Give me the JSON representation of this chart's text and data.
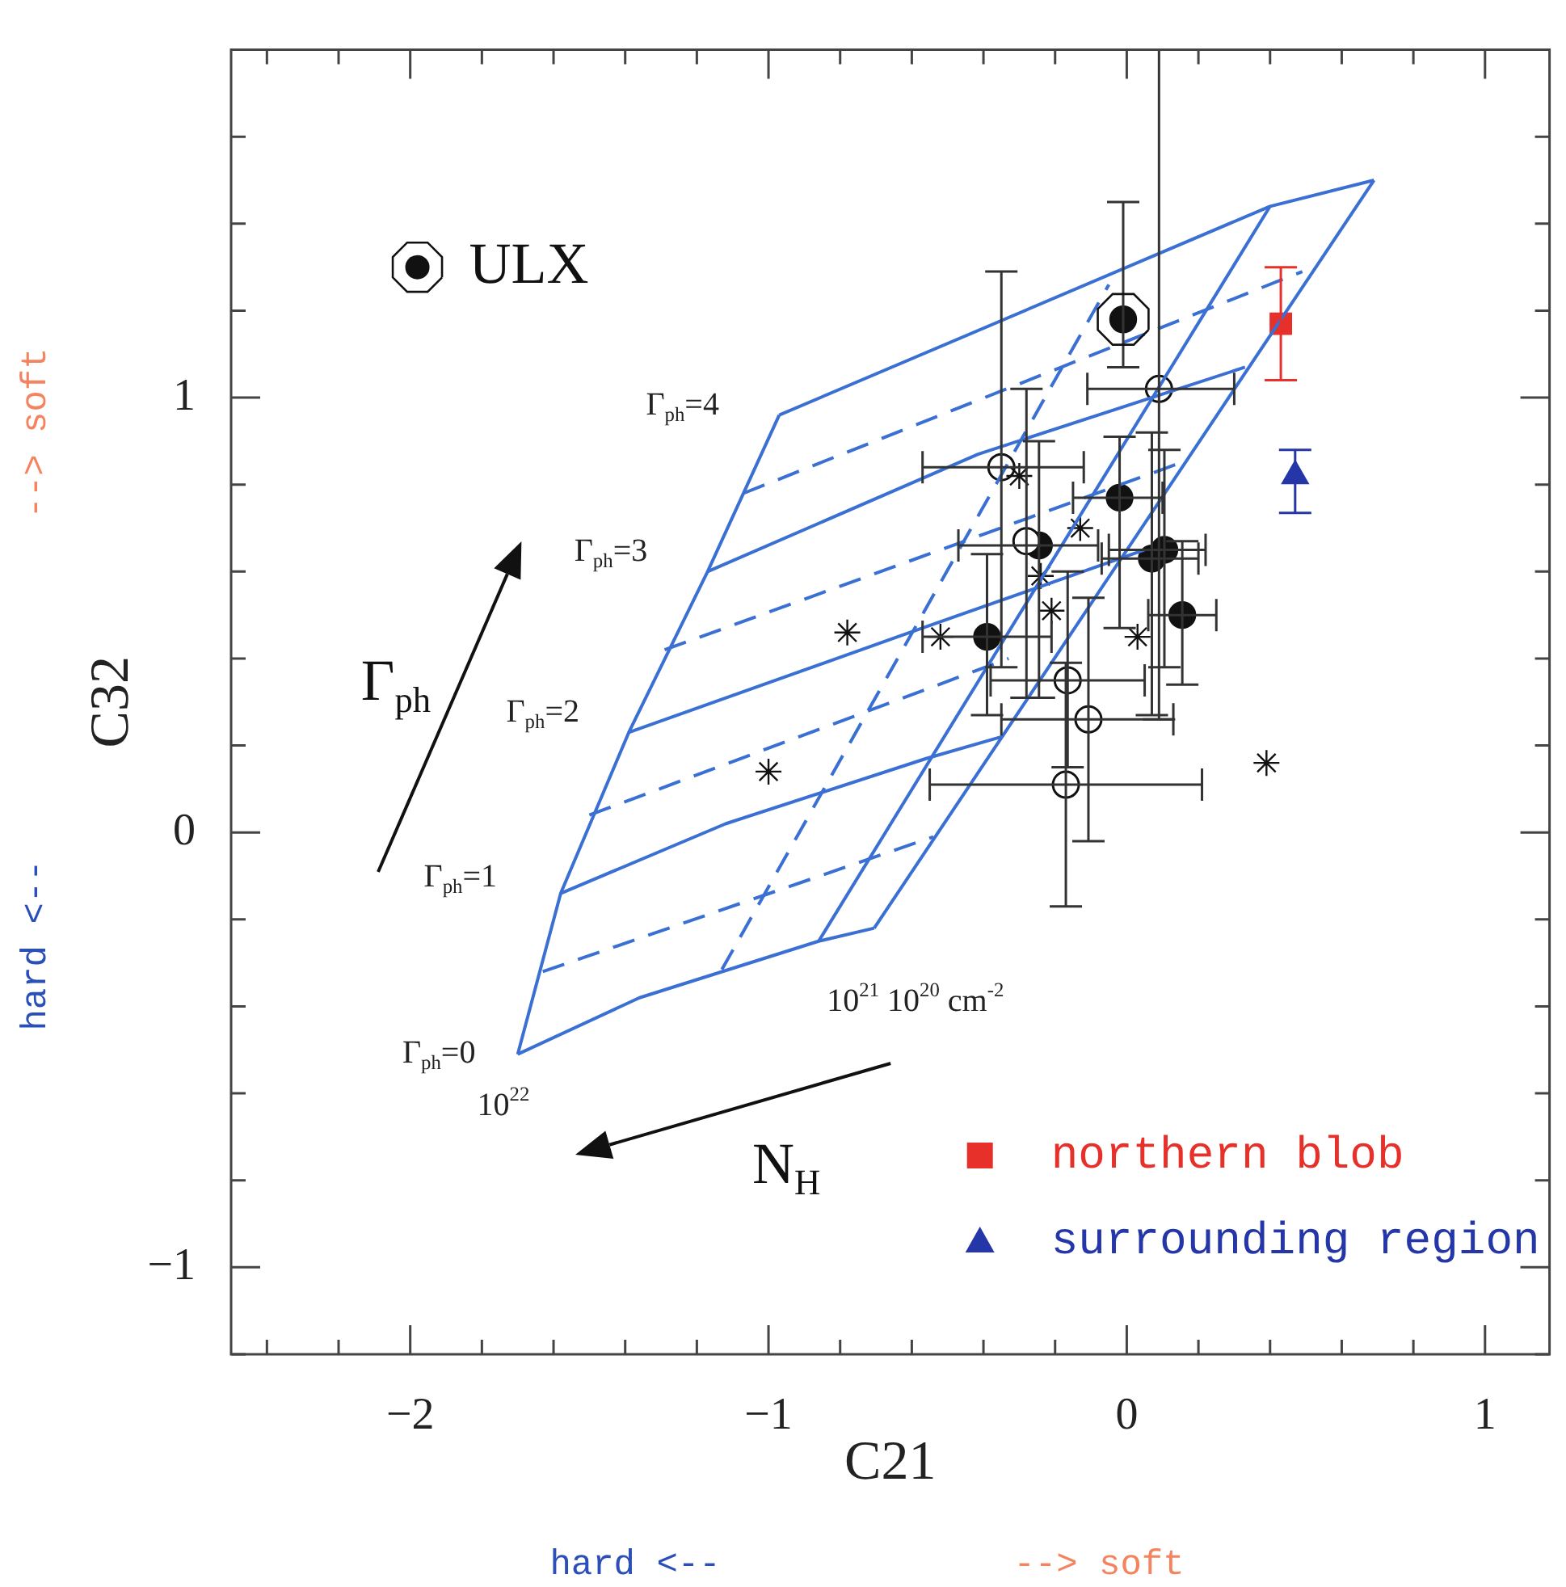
{
  "chart_data": {
    "type": "scatter",
    "xlabel": "C21",
    "ylabel": "C32",
    "xlim": [
      -2.5,
      1.18
    ],
    "ylim": [
      -1.2,
      1.8
    ],
    "xticks": [
      {
        "value": -2.4,
        "label": null
      },
      {
        "value": -2.2,
        "label": null
      },
      {
        "value": -2,
        "label": "−2"
      },
      {
        "value": -1.8,
        "label": null
      },
      {
        "value": -1.6,
        "label": null
      },
      {
        "value": -1.4,
        "label": null
      },
      {
        "value": -1.2,
        "label": null
      },
      {
        "value": -1,
        "label": "−1"
      },
      {
        "value": -0.8,
        "label": null
      },
      {
        "value": -0.6,
        "label": null
      },
      {
        "value": -0.4,
        "label": null
      },
      {
        "value": -0.2,
        "label": null
      },
      0,
      {
        "value": 0.2,
        "label": null
      },
      {
        "value": 0.4,
        "label": null
      },
      {
        "value": 0.6,
        "label": null
      },
      {
        "value": 0.8,
        "label": null
      },
      1
    ],
    "yticks": [
      {
        "value": -1.2,
        "label": null
      },
      {
        "value": -1,
        "label": "−1"
      },
      {
        "value": -0.8,
        "label": null
      },
      {
        "value": -0.6,
        "label": null
      },
      {
        "value": -0.4,
        "label": null
      },
      {
        "value": -0.2,
        "label": null
      },
      0,
      {
        "value": 0.2,
        "label": null
      },
      {
        "value": 0.4,
        "label": null
      },
      {
        "value": 0.6,
        "label": null
      },
      {
        "value": 0.8,
        "label": null
      },
      1,
      {
        "value": 1.2,
        "label": null
      },
      {
        "value": 1.4,
        "label": null
      },
      {
        "value": 1.6,
        "label": null
      },
      {
        "value": 1.8,
        "label": null
      }
    ],
    "grid": false,
    "legend": "bottom right",
    "series": [
      {
        "type": "line",
        "line_style": "solid",
        "color": "#3a6fd4",
        "x": [
          -1.7,
          -1.36,
          -0.86,
          -0.705
        ],
        "values": [
          -0.51,
          -0.38,
          -0.25,
          -0.22
        ]
      },
      {
        "type": "line",
        "line_style": "solid",
        "color": "#3a6fd4",
        "x": [
          -1.58,
          -1.12,
          -0.56,
          -0.35
        ],
        "values": [
          -0.14,
          0.02,
          0.17,
          0.22
        ]
      },
      {
        "type": "line",
        "line_style": "solid",
        "color": "#3a6fd4",
        "x": [
          -1.39,
          -0.64,
          0.05
        ],
        "values": [
          0.23,
          0.45,
          0.65
        ]
      },
      {
        "type": "line",
        "line_style": "solid",
        "color": "#3a6fd4",
        "x": [
          -1.17,
          -0.415,
          0.33
        ],
        "values": [
          0.6,
          0.87,
          1.07
        ]
      },
      {
        "type": "line",
        "line_style": "solid",
        "color": "#3a6fd4",
        "x": [
          -0.97,
          0.4,
          0.69
        ],
        "values": [
          0.96,
          1.44,
          1.5
        ]
      },
      {
        "type": "line",
        "line_style": "solid",
        "color": "#3a6fd4",
        "x": [
          -1.7,
          -1.58,
          -1.39,
          -1.17,
          -0.97
        ],
        "values": [
          -0.51,
          -0.14,
          0.23,
          0.6,
          0.96
        ]
      },
      {
        "type": "line",
        "line_style": "solid",
        "color": "#3a6fd4",
        "x": [
          -0.86,
          0.4
        ],
        "values": [
          -0.25,
          1.44
        ]
      },
      {
        "type": "line",
        "line_style": "solid",
        "color": "#3a6fd4",
        "x": [
          -0.705,
          0.69
        ],
        "values": [
          -0.22,
          1.5
        ]
      },
      {
        "type": "line",
        "line_style": "dashed",
        "color": "#3a6fd4",
        "x": [
          -1.63,
          -0.54
        ],
        "values": [
          -0.32,
          -0.01
        ]
      },
      {
        "type": "line",
        "line_style": "dashed",
        "color": "#3a6fd4",
        "x": [
          -1.5,
          -0.33
        ],
        "values": [
          0.04,
          0.4
        ]
      },
      {
        "type": "line",
        "line_style": "dashed",
        "color": "#3a6fd4",
        "x": [
          -1.29,
          0.15
        ],
        "values": [
          0.42,
          0.85
        ]
      },
      {
        "type": "line",
        "line_style": "dashed",
        "color": "#3a6fd4",
        "x": [
          -1.07,
          0.49
        ],
        "values": [
          0.78,
          1.29
        ]
      },
      {
        "type": "line",
        "line_style": "dashed",
        "color": "#3a6fd4",
        "x": [
          -1.13,
          -0.05
        ],
        "values": [
          -0.315,
          1.26
        ]
      },
      {
        "type": "scatter",
        "marker": "cross",
        "color": "#111111",
        "x": [
          -0.3,
          -0.13,
          -0.24,
          -0.21,
          0.03,
          -0.52,
          0.39,
          -0.78,
          -1.0
        ],
        "values": [
          0.82,
          0.7,
          0.59,
          0.51,
          0.45,
          0.45,
          0.16,
          0.46,
          0.14
        ]
      },
      {
        "type": "scatter",
        "marker": "circle-open",
        "color": "#111111",
        "x": [
          -0.35,
          -0.28,
          0.09,
          -0.165,
          -0.107,
          -0.17
        ],
        "values": [
          0.84,
          0.67,
          1.02,
          0.35,
          0.26,
          0.11
        ],
        "errors": [
          [
            0.38,
            1.29
          ],
          [
            0.31,
            1.02
          ],
          [
            0.26,
            1.8
          ],
          [
            0.15,
            0.6
          ],
          [
            -0.02,
            0.54
          ],
          [
            -0.17,
            0.39
          ]
        ],
        "xerrors": [
          [
            -0.57,
            -0.12
          ],
          null,
          [
            -0.11,
            0.3
          ],
          [
            -0.38,
            0.05
          ],
          [
            -0.35,
            0.13
          ],
          [
            -0.55,
            0.21
          ]
        ]
      },
      {
        "type": "scatter",
        "marker": "circle",
        "color": "#111111",
        "x": [
          -0.02,
          -0.245,
          -0.39,
          0.07,
          0.105,
          0.155
        ],
        "values": [
          0.77,
          0.66,
          0.45,
          0.63,
          0.65,
          0.5
        ],
        "errors": [
          [
            0.47,
            0.91
          ],
          [
            0.31,
            0.9
          ],
          [
            0.27,
            0.64
          ],
          [
            0.27,
            0.92
          ],
          [
            0.38,
            0.88
          ],
          [
            0.34,
            0.67
          ]
        ],
        "xerrors": [
          [
            -0.15,
            0.1
          ],
          [
            -0.47,
            -0.08
          ],
          [
            -0.57,
            -0.21
          ],
          [
            -0.07,
            0.2
          ],
          [
            -0.05,
            0.22
          ],
          [
            0.06,
            0.25
          ]
        ]
      },
      {
        "type": "scatter",
        "marker": "circle-dot",
        "name": "ULX",
        "color": "#111111",
        "x": [
          -0.01
        ],
        "values": [
          1.18
        ],
        "errors": [
          [
            1.07,
            1.45
          ]
        ]
      },
      {
        "type": "scatter",
        "marker": "square",
        "name": "northern blob",
        "color": "#e8302a",
        "x": [
          0.43
        ],
        "values": [
          1.17
        ],
        "errors": [
          [
            1.04,
            1.3
          ]
        ]
      },
      {
        "type": "scatter",
        "marker": "triangle",
        "name": "surrounding region",
        "color": "#2436a8",
        "x": [
          0.47
        ],
        "values": [
          0.82
        ],
        "errors": [
          [
            0.735,
            0.88
          ]
        ]
      }
    ],
    "annotations": [
      "Γ$_{ph}$=4",
      "Γ$_{ph}$=3",
      "Γ$_{ph}$=2",
      "Γ$_{ph}$=1",
      "Γ$_{ph}$=0",
      "10$^{22}$",
      "10$^{21}$ 10$^{20}$ cm$^{-2}$",
      "Γ$_{ph}$",
      "N$_{H}$",
      "hard <--",
      "--> soft",
      "hard <--",
      "--> soft"
    ]
  }
}
